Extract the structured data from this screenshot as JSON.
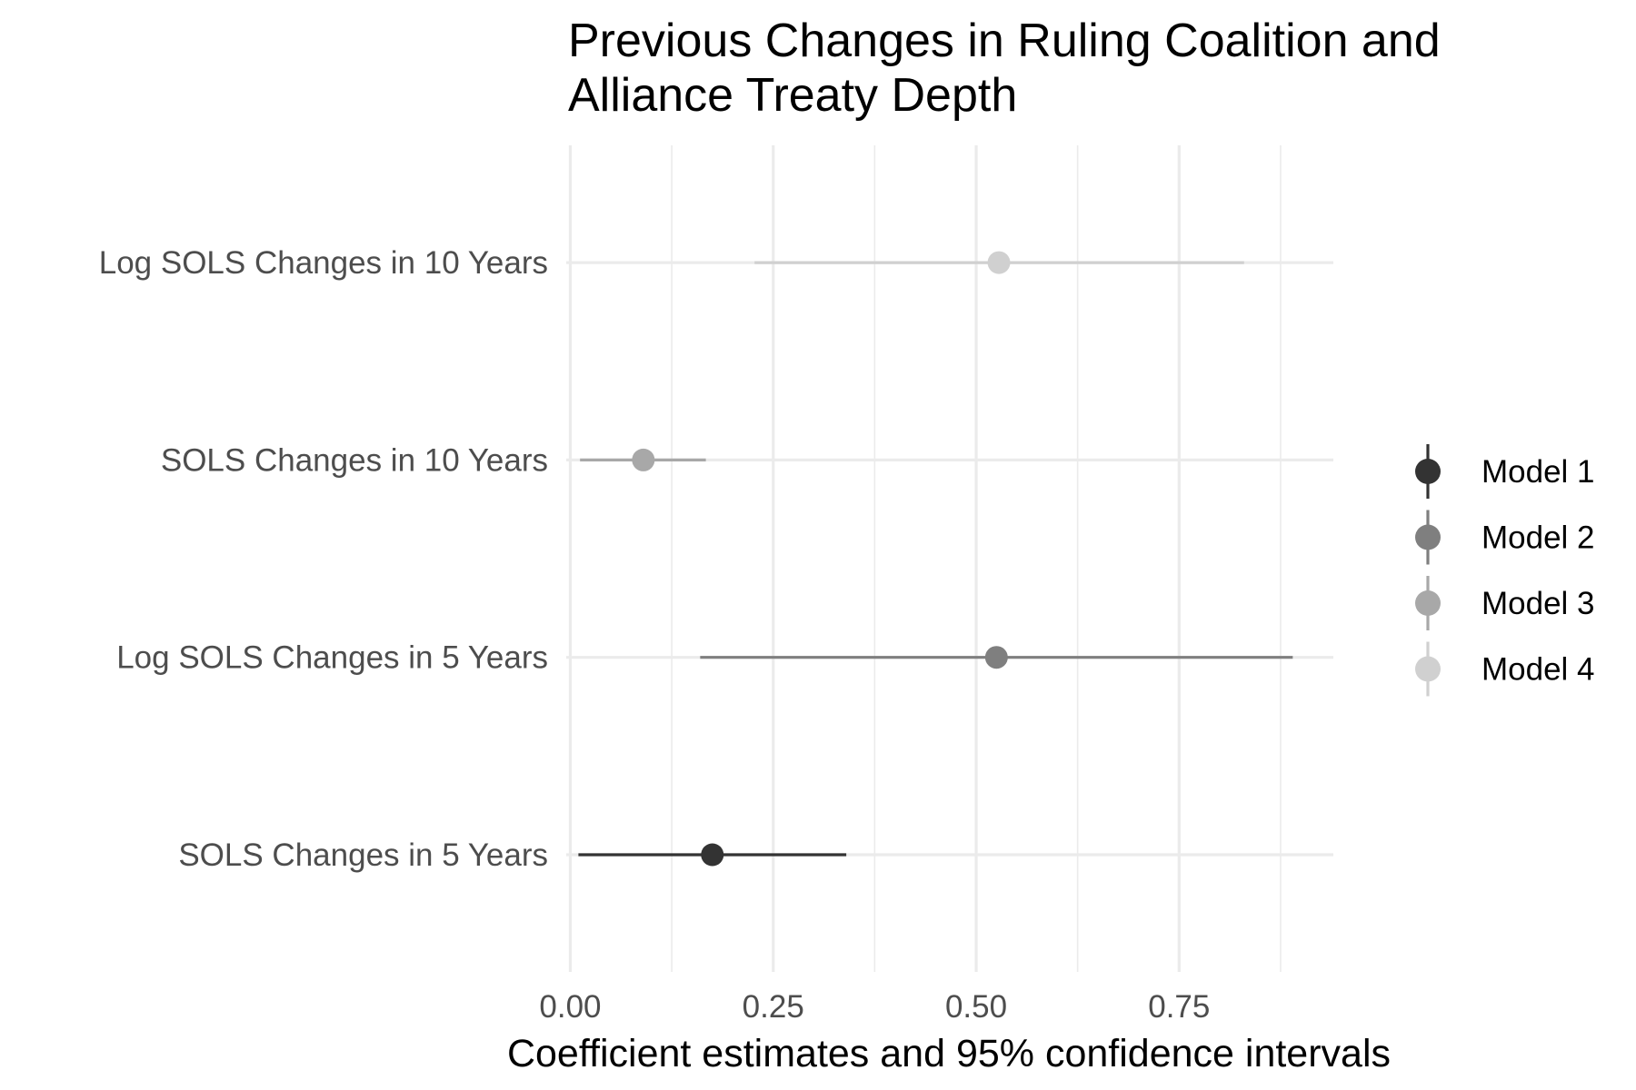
{
  "chart_data": {
    "type": "scatter",
    "subtype": "coefficient-plot",
    "title": "Previous Changes in Ruling Coalition and\n Alliance Treaty Depth",
    "xlabel": "Coefficient estimates and 95% confidence intervals",
    "ylabel": "",
    "xlim": [
      -0.005,
      0.94
    ],
    "x_ticks": [
      0.0,
      0.25,
      0.5,
      0.75
    ],
    "x_tick_labels": [
      "0.00",
      "0.25",
      "0.50",
      "0.75"
    ],
    "categories": [
      "SOLS Changes in 5 Years",
      "Log SOLS Changes in 5 Years",
      "SOLS Changes in 10 Years",
      "Log SOLS Changes in 10 Years"
    ],
    "grid": true,
    "legend_position": "right",
    "series": [
      {
        "name": "Model 1",
        "color": "#333333",
        "category": "SOLS Changes in 5 Years",
        "estimate": 0.175,
        "ci_low": 0.01,
        "ci_high": 0.34
      },
      {
        "name": "Model 2",
        "color": "#7f7f7f",
        "category": "Log SOLS Changes in 5 Years",
        "estimate": 0.525,
        "ci_low": 0.16,
        "ci_high": 0.89
      },
      {
        "name": "Model 3",
        "color": "#a8a8a8",
        "category": "SOLS Changes in 10 Years",
        "estimate": 0.09,
        "ci_low": 0.012,
        "ci_high": 0.167
      },
      {
        "name": "Model 4",
        "color": "#d0d0d0",
        "category": "Log SOLS Changes in 10 Years",
        "estimate": 0.528,
        "ci_low": 0.227,
        "ci_high": 0.83
      }
    ]
  }
}
